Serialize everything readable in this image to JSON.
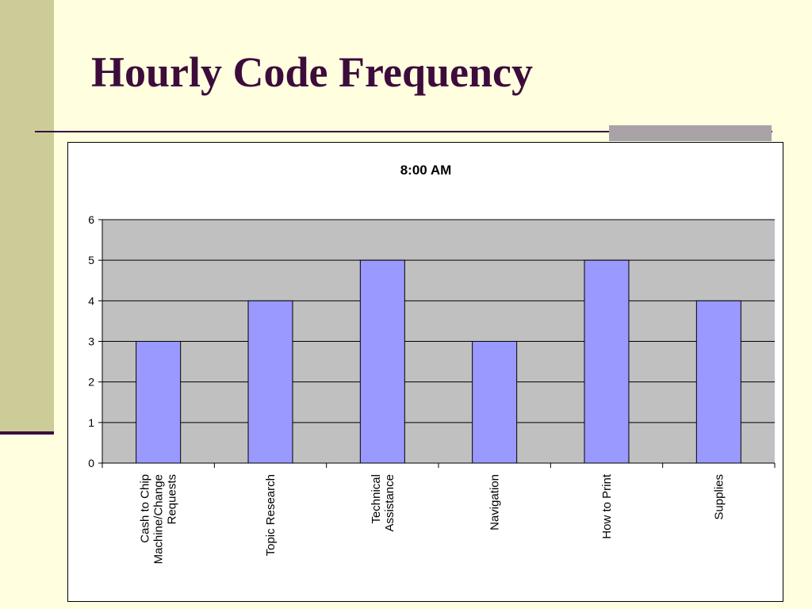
{
  "slide": {
    "title": "Hourly Code Frequency"
  },
  "colors": {
    "background": "#ffffe0",
    "side_band": "#cccc99",
    "accent_dark": "#3d0c3b",
    "accent_gray": "#a9a2a7",
    "plot_area": "#c0c0c0",
    "bar_fill": "#9999ff"
  },
  "chart_data": {
    "type": "bar",
    "title": "8:00 AM",
    "categories": [
      "Cash to Chip Machine/Change Requests",
      "Topic Research",
      "Technical Assistance",
      "Navigation",
      "How to Print",
      "Supplies"
    ],
    "values": [
      3,
      4,
      5,
      3,
      5,
      4
    ],
    "ylim": [
      0,
      6
    ],
    "yticks": [
      0,
      1,
      2,
      3,
      4,
      5,
      6
    ],
    "grid": true,
    "legend": "none",
    "xlabel": "",
    "ylabel": ""
  }
}
